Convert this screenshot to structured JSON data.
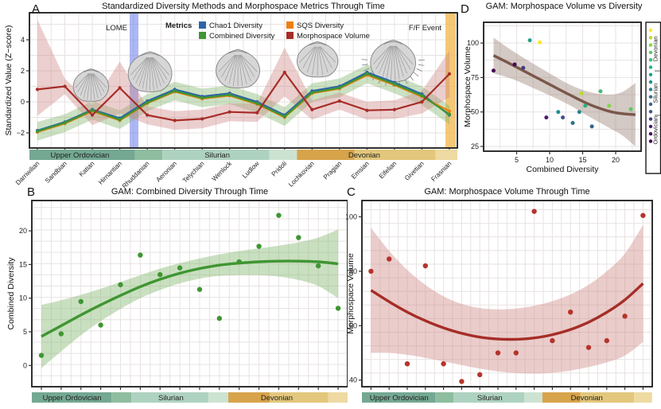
{
  "colors": {
    "chao1": "#2e64a8",
    "combined": "#3f9632",
    "combined_ribbon": "#7fb56a",
    "sqs": "#ee8012",
    "morpho": "#a62d28",
    "morpho_dot": "#b5342c",
    "morpho_ribbon": "#cc8884",
    "gam_brown": "#7a574a",
    "gam_brown_ribbon": "#8d7466",
    "lome_band": "#7a8aec",
    "ff_band": "#f2ba55",
    "grid": "#e8e2e2",
    "frame": "#1a1a1a"
  },
  "stages": [
    "Darriwilian",
    "Sandbian",
    "Katian",
    "Hirnantian",
    "Rhuddanian",
    "Aeronian",
    "Telychian",
    "Wenlock",
    "Ludlow",
    "Pridoli",
    "Lochkovian",
    "Pragian",
    "Emsian",
    "Eifelian",
    "Givetian",
    "Frasnian"
  ],
  "viridis": [
    "#440154",
    "#46085c",
    "#471d6e",
    "#433d84",
    "#3b528b",
    "#33638d",
    "#2c728e",
    "#26828e",
    "#21918c",
    "#1fa088",
    "#2ab07f",
    "#40bd72",
    "#5ec962",
    "#84d44b",
    "#b5de2b",
    "#fde725"
  ],
  "period_band": {
    "segment_colors": [
      "#74a893",
      "#8ebd9f",
      "#aed2c0",
      "#cde3d2",
      "#d7a44c",
      "#e2c77c",
      "#eedaa2"
    ],
    "segments": [
      [
        0.5,
        4.55,
        0
      ],
      [
        4.55,
        5.55,
        1
      ],
      [
        5.55,
        9.45,
        2
      ],
      [
        9.45,
        10.45,
        3
      ],
      [
        10.45,
        12.55,
        4
      ],
      [
        12.55,
        15.5,
        5
      ],
      [
        15.5,
        16.5,
        6
      ]
    ],
    "labels": [
      {
        "text": "Upper Ordovician",
        "at": 2.55
      },
      {
        "text": "Silurian",
        "at": 7.55
      },
      {
        "text": "Devonian",
        "at": 12.9
      }
    ]
  },
  "chart_data": [
    {
      "panel": "A",
      "type": "line",
      "title": "Standardized Diversity Methods and Morphospace Metrics Through Time",
      "ylabel": "Standardized Value (Z−score)",
      "yticks": [
        -2,
        0,
        2,
        4
      ],
      "ylim": [
        -3.0,
        5.7
      ],
      "x_categories": [
        "Darriwilian",
        "Sandbian",
        "Katian",
        "Hirnantian",
        "Rhuddanian",
        "Aeronian",
        "Telychian",
        "Wenlock",
        "Ludlow",
        "Pridoli",
        "Lochkovian",
        "Pragian",
        "Emsian",
        "Eifelian",
        "Givetian",
        "Frasnian"
      ],
      "legend_title": "Metrics",
      "legend": [
        {
          "label": "Chao1 Diversity",
          "color_key": "chao1"
        },
        {
          "label": "Combined Diversity",
          "color_key": "combined"
        },
        {
          "label": "SQS Diversity",
          "color_key": "sqs"
        },
        {
          "label": "Morphospace Volume",
          "color_key": "morpho"
        }
      ],
      "annotations": {
        "lome": "LOME",
        "ff": "F/F Event"
      },
      "series": [
        {
          "name": "Chao1 Diversity",
          "color_key": "chao1",
          "values": [
            -1.85,
            -1.3,
            -0.5,
            -1.05,
            0.05,
            0.8,
            0.35,
            0.55,
            0.0,
            -0.85,
            0.7,
            1.0,
            1.9,
            1.25,
            0.5,
            -0.85
          ]
        },
        {
          "name": "SQS Diversity",
          "color_key": "sqs",
          "values": [
            -1.95,
            -1.4,
            -0.6,
            -1.2,
            -0.1,
            0.65,
            0.2,
            0.4,
            -0.15,
            -1.0,
            0.55,
            0.85,
            1.72,
            1.08,
            0.33,
            -0.6
          ]
        },
        {
          "name": "Combined Diversity",
          "color_key": "combined",
          "values": [
            -1.9,
            -1.35,
            -0.55,
            -1.15,
            -0.05,
            0.7,
            0.25,
            0.45,
            -0.1,
            -0.95,
            0.6,
            0.9,
            1.8,
            1.15,
            0.4,
            -0.8
          ]
        },
        {
          "name": "Morphospace Volume",
          "color_key": "morpho",
          "values": [
            0.8,
            1.0,
            -0.85,
            0.9,
            -0.85,
            -1.2,
            -1.1,
            -0.65,
            -0.7,
            1.9,
            -0.5,
            0.05,
            -0.55,
            -0.5,
            0.0,
            1.8
          ]
        }
      ],
      "ribbons": [
        {
          "around": "Combined Diversity",
          "color_key": "combined_ribbon",
          "upper": [
            -1.3,
            -0.8,
            0.05,
            -0.55,
            0.5,
            1.3,
            0.85,
            1.05,
            0.5,
            -0.35,
            1.2,
            1.5,
            2.4,
            1.75,
            1.0,
            -0.25
          ],
          "lower": [
            -2.5,
            -1.95,
            -1.15,
            -1.75,
            -0.6,
            0.1,
            -0.35,
            -0.15,
            -0.7,
            -1.55,
            0.0,
            0.3,
            1.2,
            0.55,
            -0.2,
            -1.45
          ]
        },
        {
          "around": "Morphospace Volume",
          "color_key": "morpho_ribbon",
          "upper": [
            5.3,
            1.5,
            -0.2,
            2.6,
            -0.3,
            -0.6,
            -0.5,
            -0.1,
            -0.1,
            3.5,
            0.1,
            0.6,
            0.0,
            0.1,
            0.7,
            3.3
          ],
          "lower": [
            -0.9,
            0.5,
            -1.5,
            -0.75,
            -1.45,
            -1.8,
            -1.7,
            -1.25,
            -1.3,
            0.35,
            -1.15,
            -0.5,
            -1.15,
            -1.1,
            -0.75,
            0.3
          ]
        }
      ]
    },
    {
      "panel": "B",
      "type": "scatter",
      "title": "GAM: Combined Diversity Through Time",
      "ylabel": "Combined Diversity",
      "yticks": [
        0,
        5,
        10,
        15,
        20
      ],
      "ylim": [
        -3.2,
        24.6
      ],
      "x_categories": [
        "Darriwilian",
        "Sandbian",
        "Katian",
        "Hirnantian",
        "Rhuddanian",
        "Aeronian",
        "Telychian",
        "Wenlock",
        "Ludlow",
        "Pridoli",
        "Lochkovian",
        "Pragian",
        "Emsian",
        "Eifelian",
        "Givetian",
        "Frasnian"
      ],
      "values": [
        1.5,
        4.7,
        9.5,
        6.0,
        12.0,
        16.4,
        13.5,
        14.5,
        11.3,
        7.0,
        15.4,
        17.7,
        22.3,
        19.0,
        14.8,
        8.5
      ],
      "gam": {
        "fit": [
          4.3,
          5.9,
          7.5,
          9.0,
          10.4,
          11.7,
          12.8,
          13.7,
          14.4,
          14.9,
          15.2,
          15.4,
          15.5,
          15.5,
          15.4,
          15.1
        ],
        "upper": [
          9.0,
          9.7,
          10.5,
          11.4,
          12.4,
          13.4,
          14.4,
          15.2,
          15.9,
          16.5,
          17.0,
          17.4,
          17.8,
          18.3,
          19.0,
          20.2
        ],
        "lower": [
          -0.4,
          2.1,
          4.5,
          6.6,
          8.4,
          10.0,
          11.2,
          12.2,
          12.9,
          13.3,
          13.4,
          13.4,
          13.2,
          12.7,
          11.8,
          10.0
        ]
      }
    },
    {
      "panel": "C",
      "type": "scatter",
      "title": "GAM: Morphospace Volume Through Time",
      "ylabel": "Morphospace Volume",
      "yticks": [
        40,
        60,
        80,
        100
      ],
      "ylim": [
        37.6,
        106
      ],
      "x_categories": [
        "Darriwilian",
        "Sandbian",
        "Katian",
        "Hirnantian",
        "Rhuddanian",
        "Aeronian",
        "Telychian",
        "Wenlock",
        "Ludlow",
        "Pridoli",
        "Lochkovian",
        "Pragian",
        "Emsian",
        "Eifelian",
        "Givetian",
        "Frasnian"
      ],
      "values": [
        80,
        84.5,
        46,
        82,
        46,
        39.5,
        42,
        50,
        50,
        102,
        54.5,
        65,
        52,
        54.5,
        63.5,
        100.5
      ],
      "gam": {
        "fit": [
          73,
          68.8,
          65,
          61.8,
          59.2,
          57.2,
          55.8,
          55.1,
          55,
          55.5,
          56.7,
          58.6,
          61.3,
          64.9,
          69.5,
          75.5
        ],
        "upper": [
          96,
          87.5,
          80.5,
          75,
          70.8,
          68,
          66.5,
          66,
          66.3,
          67.3,
          69,
          71.5,
          75,
          80,
          86.5,
          97
        ],
        "lower": [
          50,
          50,
          49.3,
          48.2,
          46.9,
          45.5,
          44.2,
          43.2,
          42.6,
          42.4,
          42.7,
          43.5,
          44.8,
          46.5,
          49,
          54
        ]
      }
    },
    {
      "panel": "D",
      "type": "scatter",
      "title": "GAM: Morphospace Volume vs Diversity",
      "xlabel": "Combined Diversity",
      "ylabel": "Morphospace Volume",
      "xticks": [
        5,
        10,
        15,
        20
      ],
      "yticks": [
        25,
        50,
        75,
        100
      ],
      "xlim": [
        0,
        24
      ],
      "ylim": [
        21.5,
        115
      ],
      "x": [
        1.5,
        4.7,
        9.5,
        6.0,
        12.0,
        16.4,
        13.5,
        14.5,
        11.3,
        7.0,
        15.4,
        17.7,
        22.3,
        19.0,
        14.8,
        8.5
      ],
      "y": [
        80,
        84.5,
        46,
        82,
        46,
        39.5,
        42,
        50,
        50,
        102,
        54.5,
        65,
        52,
        54.5,
        63.5,
        100.5
      ],
      "point_color_rule": "viridis by stage index",
      "gam": {
        "x": [
          1.5,
          4,
          7,
          10,
          13,
          16,
          19,
          21,
          23
        ],
        "fit": [
          91,
          85,
          77.5,
          70,
          62.5,
          55.5,
          50.5,
          48.8,
          48
        ],
        "upper": [
          104,
          95.5,
          86.5,
          78,
          70,
          64.5,
          62.5,
          64.5,
          71
        ],
        "lower": [
          78,
          74.5,
          68.5,
          62,
          55,
          46.5,
          38.5,
          33,
          25
        ]
      },
      "colorbar_labels": [
        "Ordovician",
        "Silurian",
        "Devonian"
      ],
      "colorbar_group_sizes": [
        4,
        6,
        6
      ]
    }
  ]
}
